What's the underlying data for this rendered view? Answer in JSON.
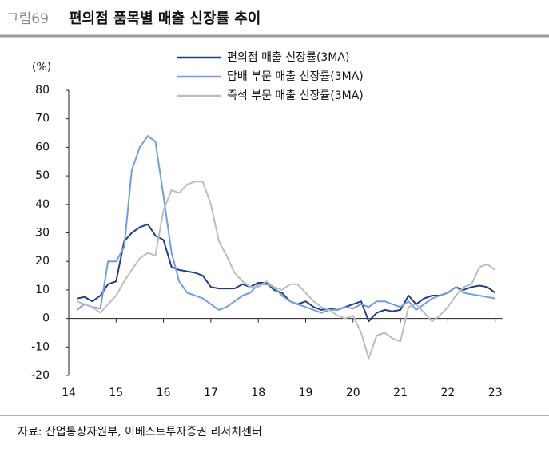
{
  "chart_data": {
    "type": "line",
    "figure_label": "그림69",
    "title": "편의점 품목별 매출 신장률 추이",
    "y_unit": "(%)",
    "source": "자료: 산업통상자원부, 이베스트투자증권 리서치센터",
    "x": [
      14.17,
      14.33,
      14.5,
      14.67,
      14.83,
      15,
      15.17,
      15.33,
      15.5,
      15.67,
      15.83,
      16,
      16.17,
      16.33,
      16.5,
      16.67,
      16.83,
      17,
      17.17,
      17.33,
      17.5,
      17.67,
      17.83,
      18,
      18.17,
      18.33,
      18.5,
      18.67,
      18.83,
      19,
      19.17,
      19.33,
      19.5,
      19.67,
      19.83,
      20,
      20.17,
      20.33,
      20.5,
      20.67,
      20.83,
      21,
      21.17,
      21.33,
      21.5,
      21.67,
      21.83,
      22,
      22.17,
      22.33,
      22.5,
      22.67,
      22.83,
      23
    ],
    "xlim": [
      14,
      23.15
    ],
    "xticks": [
      14,
      15,
      16,
      17,
      18,
      19,
      20,
      21,
      22,
      23
    ],
    "ylim": [
      -20,
      80
    ],
    "yticks": [
      -20,
      -10,
      0,
      10,
      20,
      30,
      40,
      50,
      60,
      70,
      80
    ],
    "legend": "top",
    "series": [
      {
        "name": "편의점 매출 신장률(3MA)",
        "color": "#1f3d8c",
        "values": [
          7,
          7.5,
          6,
          8,
          12,
          13,
          27,
          30,
          32,
          33,
          29,
          27.5,
          18,
          17,
          16.5,
          16,
          15,
          11,
          10.5,
          10.5,
          10.5,
          12,
          11,
          12.5,
          12.5,
          10,
          9,
          6,
          5,
          6,
          4,
          3,
          3.5,
          3,
          4,
          5,
          6,
          -1,
          2,
          3,
          2.5,
          3,
          8,
          5,
          7,
          8,
          8,
          9,
          11,
          10,
          11,
          11.5,
          11,
          9
        ]
      },
      {
        "name": "담배 부문 매출 신장률(3MA)",
        "color": "#6f9ee6",
        "values": [
          3,
          5,
          4,
          3.5,
          20,
          20,
          25,
          52,
          60,
          64,
          62,
          43,
          23,
          13,
          9,
          8,
          7,
          5,
          3,
          4,
          6,
          8,
          9,
          12,
          12,
          11,
          8,
          6,
          5,
          4,
          3,
          2,
          3,
          3,
          4,
          3.5,
          5,
          4,
          6,
          6,
          5,
          4,
          6,
          3,
          5,
          7,
          8,
          9,
          11,
          9,
          8.5,
          8,
          7.5,
          7
        ]
      },
      {
        "name": "즉석 부문 매출 신장률(3MA)",
        "color": "#bdbdbd",
        "values": [
          6,
          5,
          4,
          2,
          5,
          8,
          13,
          17,
          21,
          23,
          22,
          38,
          45,
          44,
          47,
          48,
          48,
          40,
          27,
          22,
          16,
          13,
          11,
          11,
          13,
          11,
          10,
          12,
          12,
          9,
          6,
          4,
          3,
          1,
          0,
          1,
          -5,
          -14,
          -6,
          -5,
          -7,
          -8,
          4,
          5,
          2,
          -1,
          1,
          4,
          8,
          11,
          12,
          18,
          19,
          17
        ]
      }
    ]
  }
}
